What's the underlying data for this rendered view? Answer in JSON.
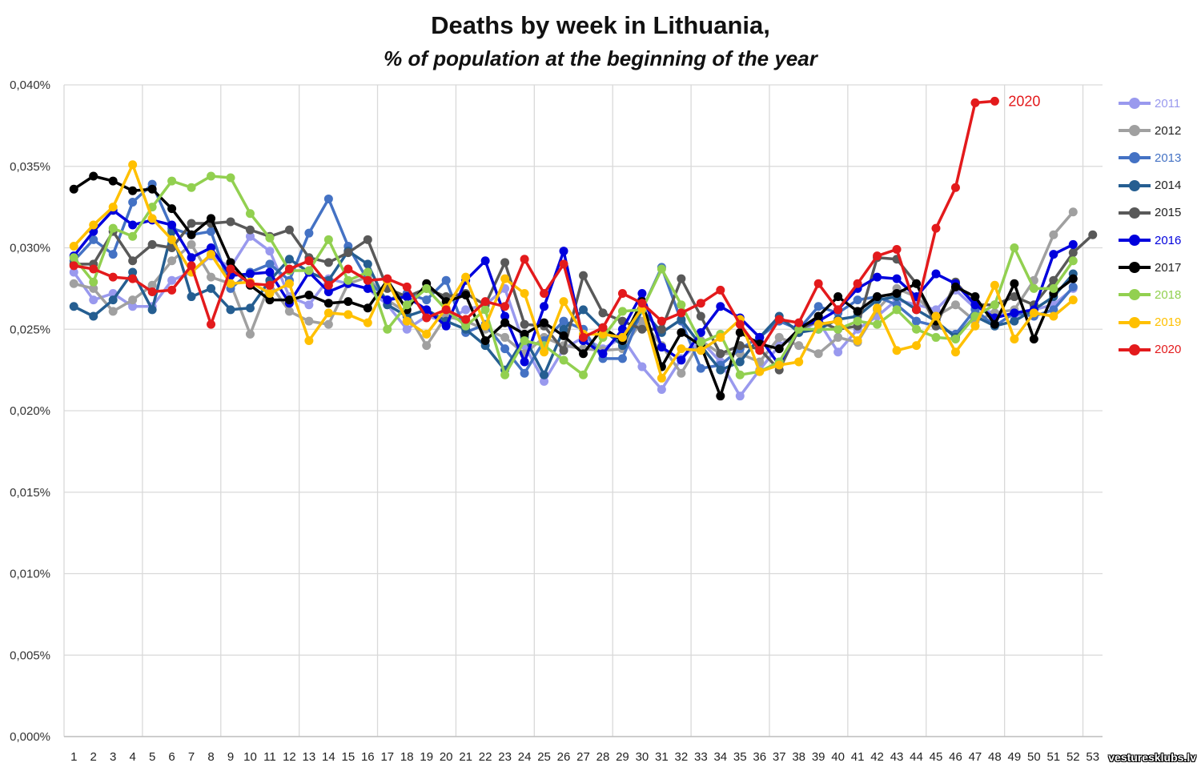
{
  "chart_data": {
    "type": "line",
    "title": "Deaths by week in Lithuania,",
    "subtitle": "% of population at the beginning of the year",
    "xlabel": "",
    "ylabel": "",
    "ylim": [
      0,
      0.04
    ],
    "yticks": [
      "0,000%",
      "0,005%",
      "0,010%",
      "0,015%",
      "0,020%",
      "0,025%",
      "0,030%",
      "0,035%",
      "0,040%"
    ],
    "x": [
      1,
      2,
      3,
      4,
      5,
      6,
      7,
      8,
      9,
      10,
      11,
      12,
      13,
      14,
      15,
      16,
      17,
      18,
      19,
      20,
      21,
      22,
      23,
      24,
      25,
      26,
      27,
      28,
      29,
      30,
      31,
      32,
      33,
      34,
      35,
      36,
      37,
      38,
      39,
      40,
      41,
      42,
      43,
      44,
      45,
      46,
      47,
      48,
      49,
      50,
      51,
      52,
      53
    ],
    "grid": "vertical and horizontal",
    "legend_position": "right",
    "annotation": {
      "text": "2020",
      "color": "#e31a1c"
    },
    "series": [
      {
        "name": "2011",
        "color": "#9999ee",
        "values": [
          0.0285,
          0.0268,
          0.0272,
          0.0264,
          0.0264,
          0.028,
          0.0285,
          0.0295,
          0.0288,
          0.0307,
          0.0298,
          0.027,
          0.0265,
          0.0281,
          0.0278,
          0.0275,
          0.0265,
          0.025,
          0.0258,
          0.0255,
          0.0262,
          0.0265,
          0.0275,
          0.024,
          0.0218,
          0.0238,
          0.0245,
          0.0238,
          0.0245,
          0.0227,
          0.0213,
          0.0232,
          0.0243,
          0.023,
          0.0209,
          0.0225,
          0.024,
          0.0248,
          0.0255,
          0.0236,
          0.025,
          0.0258,
          0.0268,
          0.0265,
          0.0262,
          0.0274,
          0.0263,
          0.026,
          0.0258,
          0.0262,
          0.0265,
          0.0275,
          null
        ]
      },
      {
        "name": "2012",
        "color": "#a0a0a0",
        "values": [
          0.0278,
          0.0275,
          0.0261,
          0.0268,
          0.0277,
          0.0292,
          0.0302,
          0.0282,
          0.0278,
          0.0247,
          0.0278,
          0.0261,
          0.0255,
          0.0253,
          0.0278,
          0.0282,
          0.0268,
          0.026,
          0.024,
          0.0258,
          0.0255,
          0.025,
          0.0245,
          0.0235,
          0.0245,
          0.024,
          0.0238,
          0.0237,
          0.0238,
          0.0255,
          0.024,
          0.0223,
          0.0243,
          0.0235,
          0.0235,
          0.023,
          0.0245,
          0.024,
          0.0235,
          0.0245,
          0.0242,
          0.0262,
          0.0275,
          0.027,
          0.0258,
          0.0265,
          0.0255,
          0.026,
          0.0262,
          0.028,
          0.0308,
          0.0322,
          null
        ]
      },
      {
        "name": "2013",
        "color": "#4472c4",
        "values": [
          0.0292,
          0.0305,
          0.0296,
          0.0328,
          0.0339,
          0.0312,
          0.0308,
          0.031,
          0.0275,
          0.0285,
          0.029,
          0.028,
          0.0309,
          0.033,
          0.0301,
          0.028,
          0.0268,
          0.0272,
          0.0268,
          0.028,
          0.0248,
          0.0253,
          0.0238,
          0.0223,
          0.0243,
          0.0255,
          0.025,
          0.0232,
          0.0232,
          0.0262,
          0.0288,
          0.0255,
          0.0226,
          0.0228,
          0.0238,
          0.0245,
          0.0255,
          0.025,
          0.0264,
          0.026,
          0.0268,
          0.027,
          0.0265,
          0.0255,
          0.0252,
          0.0247,
          0.0262,
          0.0252,
          0.026,
          0.0258,
          0.0262,
          0.0276,
          null
        ]
      },
      {
        "name": "2014",
        "color": "#255e91",
        "values": [
          0.0264,
          0.0258,
          0.0268,
          0.0285,
          0.0262,
          0.031,
          0.027,
          0.0275,
          0.0262,
          0.0263,
          0.028,
          0.0293,
          0.0285,
          0.028,
          0.0298,
          0.029,
          0.0265,
          0.0258,
          0.0262,
          0.0255,
          0.025,
          0.024,
          0.0225,
          0.0245,
          0.0222,
          0.025,
          0.0262,
          0.025,
          0.024,
          0.0262,
          0.0248,
          0.0256,
          0.024,
          0.0225,
          0.023,
          0.0245,
          0.0258,
          0.0248,
          0.025,
          0.0256,
          0.0258,
          0.0268,
          0.027,
          0.0262,
          0.0255,
          0.0245,
          0.0258,
          0.0252,
          0.0255,
          0.0262,
          0.027,
          0.0284,
          null
        ]
      },
      {
        "name": "2015",
        "color": "#595959",
        "values": [
          0.029,
          0.029,
          0.031,
          0.0292,
          0.0302,
          0.03,
          0.0315,
          0.0315,
          0.0316,
          0.0311,
          0.0307,
          0.0311,
          0.0294,
          0.0291,
          0.0297,
          0.0305,
          0.0275,
          0.027,
          0.0275,
          0.027,
          0.0272,
          0.0265,
          0.0291,
          0.0253,
          0.0252,
          0.0237,
          0.0283,
          0.026,
          0.0255,
          0.025,
          0.025,
          0.0281,
          0.0258,
          0.0235,
          0.024,
          0.0238,
          0.0225,
          0.025,
          0.0255,
          0.025,
          0.0252,
          0.0294,
          0.0293,
          0.0278,
          0.0252,
          0.0279,
          0.0265,
          0.0265,
          0.027,
          0.0265,
          0.028,
          0.0297,
          0.0308
        ]
      },
      {
        "name": "2016",
        "color": "#0000dd",
        "values": [
          0.0295,
          0.031,
          0.0323,
          0.0314,
          0.0317,
          0.0314,
          0.0294,
          0.03,
          0.0283,
          0.0284,
          0.0285,
          0.0266,
          0.0285,
          0.0273,
          0.0278,
          0.0275,
          0.0268,
          0.027,
          0.0262,
          0.0252,
          0.028,
          0.0292,
          0.0258,
          0.023,
          0.0264,
          0.0298,
          0.0243,
          0.0235,
          0.025,
          0.0272,
          0.0239,
          0.0231,
          0.0248,
          0.0264,
          0.0257,
          0.0245,
          0.0228,
          0.0252,
          0.0255,
          0.0262,
          0.0275,
          0.0282,
          0.0281,
          0.027,
          0.0284,
          0.0278,
          0.0265,
          0.0257,
          0.026,
          0.0262,
          0.0296,
          0.0302,
          null
        ]
      },
      {
        "name": "2017",
        "color": "#000000",
        "values": [
          0.0336,
          0.0344,
          0.0341,
          0.0335,
          0.0336,
          0.0324,
          0.0308,
          0.0318,
          0.0291,
          0.0277,
          0.0268,
          0.0268,
          0.0271,
          0.0266,
          0.0267,
          0.0263,
          0.028,
          0.0262,
          0.0278,
          0.0267,
          0.0271,
          0.0243,
          0.0254,
          0.0247,
          0.0254,
          0.0246,
          0.0235,
          0.0251,
          0.0243,
          0.0267,
          0.0227,
          0.0248,
          0.024,
          0.0209,
          0.0248,
          0.0241,
          0.0238,
          0.025,
          0.0258,
          0.027,
          0.0261,
          0.027,
          0.0272,
          0.0278,
          0.0255,
          0.0276,
          0.027,
          0.0253,
          0.0278,
          0.0244,
          0.0272,
          0.0281,
          null
        ]
      },
      {
        "name": "2018",
        "color": "#92d050",
        "values": [
          0.0294,
          0.0279,
          0.0312,
          0.0307,
          0.0325,
          0.0341,
          0.0337,
          0.0344,
          0.0343,
          0.0321,
          0.0306,
          0.0286,
          0.0286,
          0.0305,
          0.028,
          0.0285,
          0.025,
          0.0265,
          0.0275,
          0.0262,
          0.0252,
          0.0262,
          0.0222,
          0.0243,
          0.024,
          0.0231,
          0.0222,
          0.0245,
          0.0261,
          0.0262,
          0.0287,
          0.0265,
          0.0242,
          0.0247,
          0.0222,
          0.0224,
          0.023,
          0.025,
          0.025,
          0.025,
          0.0255,
          0.0253,
          0.0262,
          0.025,
          0.0245,
          0.0244,
          0.0258,
          0.0265,
          0.03,
          0.0275,
          0.0275,
          0.0292,
          null
        ]
      },
      {
        "name": "2019",
        "color": "#ffc000",
        "values": [
          0.0301,
          0.0314,
          0.0325,
          0.0351,
          0.0318,
          0.0305,
          0.0285,
          0.0296,
          0.0278,
          0.0279,
          0.0272,
          0.0278,
          0.0243,
          0.026,
          0.0259,
          0.0254,
          0.028,
          0.0255,
          0.0247,
          0.0263,
          0.0282,
          0.0252,
          0.0281,
          0.0272,
          0.0236,
          0.0267,
          0.0247,
          0.0247,
          0.0245,
          0.0263,
          0.022,
          0.0238,
          0.0237,
          0.0245,
          0.0256,
          0.0224,
          0.0228,
          0.023,
          0.0253,
          0.0255,
          0.0243,
          0.0263,
          0.0237,
          0.024,
          0.0258,
          0.0236,
          0.0252,
          0.0277,
          0.0244,
          0.026,
          0.0258,
          0.0268,
          null
        ]
      },
      {
        "name": "2020",
        "color": "#e31a1c",
        "values": [
          0.0289,
          0.0287,
          0.0282,
          0.0281,
          0.0273,
          0.0274,
          0.0289,
          0.0253,
          0.0287,
          0.0278,
          0.0277,
          0.0287,
          0.0292,
          0.0277,
          0.0287,
          0.028,
          0.0281,
          0.0276,
          0.0257,
          0.0262,
          0.0256,
          0.0267,
          0.0264,
          0.0293,
          0.0272,
          0.029,
          0.0245,
          0.0251,
          0.0272,
          0.0266,
          0.0255,
          0.026,
          0.0266,
          0.0274,
          0.0253,
          0.0237,
          0.0256,
          0.0254,
          0.0278,
          0.0262,
          0.0278,
          0.0295,
          0.0299,
          0.0262,
          0.0312,
          0.0337,
          0.0389,
          0.039,
          null,
          null,
          null,
          null,
          null
        ]
      }
    ]
  },
  "watermark": "vesturesklubs.lv"
}
